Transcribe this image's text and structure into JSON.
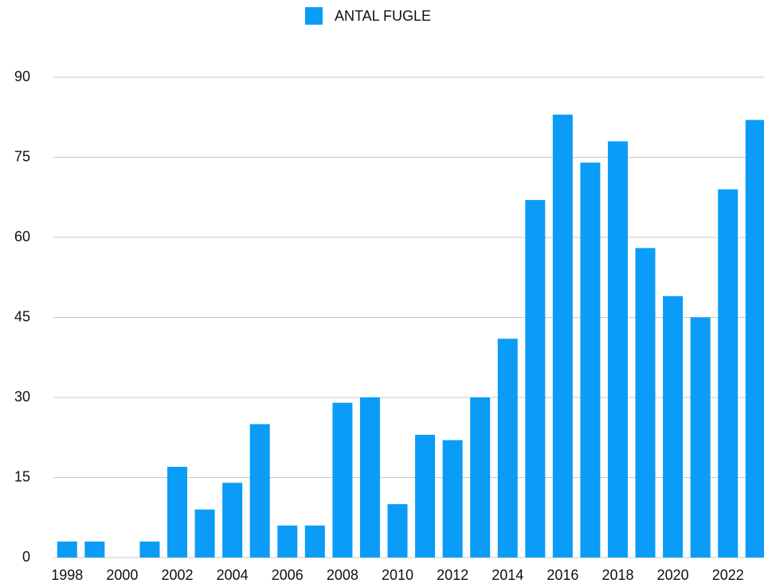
{
  "chart_data": {
    "type": "bar",
    "categories": [
      "1998",
      null,
      "2000",
      null,
      "2002",
      null,
      "2004",
      null,
      "2006",
      null,
      "2008",
      null,
      "2010",
      null,
      "2012",
      null,
      "2014",
      null,
      "2016",
      null,
      "2018",
      null,
      "2020",
      null,
      "2022",
      null
    ],
    "series": [
      {
        "name": "ANTAL FUGLE",
        "color": "#0a9cf7",
        "values": [
          3,
          3,
          0,
          3,
          17,
          9,
          14,
          25,
          6,
          6,
          29,
          30,
          10,
          23,
          22,
          30,
          41,
          67,
          83,
          74,
          78,
          58,
          49,
          45,
          69,
          82
        ]
      }
    ],
    "ylim": [
      0,
      90
    ],
    "yticks": [
      0,
      15,
      30,
      45,
      60,
      75,
      90
    ],
    "grid": true,
    "legend": "top"
  }
}
